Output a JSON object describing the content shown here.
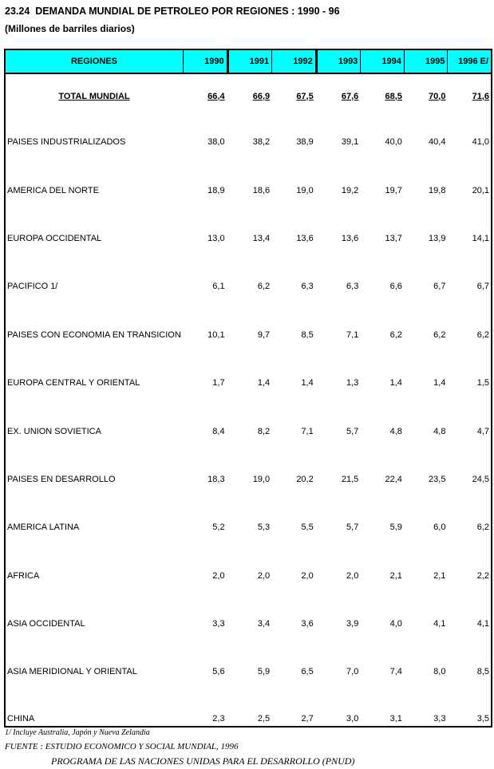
{
  "title": "23.24  DEMANDA MUNDIAL DE PETROLEO POR REGIONES : 1990 - 96",
  "subtitle": "(Millones de barriles diarios)",
  "colors": {
    "header_background": "#00FFFF",
    "border": "#000000",
    "page_background": "#FFFFFF"
  },
  "chart_data": {
    "type": "table",
    "title": "DEMANDA MUNDIAL DE PETROLEO POR REGIONES : 1990 - 96",
    "units": "Millones de barriles diarios",
    "columns": [
      "REGIONES",
      "1990",
      "1991",
      "1992",
      "1993",
      "1994",
      "1995",
      "1996 E/"
    ],
    "rows": [
      {
        "label": "TOTAL MUNDIAL",
        "emphasis": true,
        "values": [
          "66,4",
          "66,9",
          "67,5",
          "67,6",
          "68,5",
          "70,0",
          "71,6"
        ]
      },
      {
        "label": "PAISES INDUSTRIALIZADOS",
        "values": [
          "38,0",
          "38,2",
          "38,9",
          "39,1",
          "40,0",
          "40,4",
          "41,0"
        ]
      },
      {
        "label": "AMERICA DEL NORTE",
        "values": [
          "18,9",
          "18,6",
          "19,0",
          "19,2",
          "19,7",
          "19,8",
          "20,1"
        ]
      },
      {
        "label": "EUROPA OCCIDENTAL",
        "values": [
          "13,0",
          "13,4",
          "13,6",
          "13,6",
          "13,7",
          "13,9",
          "14,1"
        ]
      },
      {
        "label": "PACIFICO 1/",
        "values": [
          "6,1",
          "6,2",
          "6,3",
          "6,3",
          "6,6",
          "6,7",
          "6,7"
        ]
      },
      {
        "label": "PAISES CON ECONOMIA EN TRANSICION",
        "values": [
          "10,1",
          "9,7",
          "8,5",
          "7,1",
          "6,2",
          "6,2",
          "6,2"
        ]
      },
      {
        "label": "EUROPA CENTRAL Y ORIENTAL",
        "values": [
          "1,7",
          "1,4",
          "1,4",
          "1,3",
          "1,4",
          "1,4",
          "1,5"
        ]
      },
      {
        "label": "EX. UNION SOVIETICA",
        "values": [
          "8,4",
          "8,2",
          "7,1",
          "5,7",
          "4,8",
          "4,8",
          "4,7"
        ]
      },
      {
        "label": "PAISES EN DESARROLLO",
        "values": [
          "18,3",
          "19,0",
          "20,2",
          "21,5",
          "22,4",
          "23,5",
          "24,5"
        ]
      },
      {
        "label": "AMERICA LATINA",
        "values": [
          "5,2",
          "5,3",
          "5,5",
          "5,7",
          "5,9",
          "6,0",
          "6,2"
        ]
      },
      {
        "label": "AFRICA",
        "values": [
          "2,0",
          "2,0",
          "2,0",
          "2,0",
          "2,1",
          "2,1",
          "2,2"
        ]
      },
      {
        "label": "ASIA OCCIDENTAL",
        "values": [
          "3,3",
          "3,4",
          "3,6",
          "3,9",
          "4,0",
          "4,1",
          "4,1"
        ]
      },
      {
        "label": "ASIA MERIDIONAL Y ORIENTAL",
        "values": [
          "5,6",
          "5,9",
          "6,5",
          "7,0",
          "7,4",
          "8,0",
          "8,5"
        ]
      },
      {
        "label": "CHINA",
        "values": [
          "2,3",
          "2,5",
          "2,7",
          "3,0",
          "3,1",
          "3,3",
          "3,5"
        ]
      }
    ]
  },
  "footnotes": {
    "note1": "1/ Incluye Australia, Japón y Nueva Zelandia",
    "source": "FUENTE : ESTUDIO ECONOMICO Y SOCIAL MUNDIAL, 1996",
    "source2": "PROGRAMA DE LAS NACIONES UNIDAS PARA EL DESARROLLO (PNUD)"
  }
}
